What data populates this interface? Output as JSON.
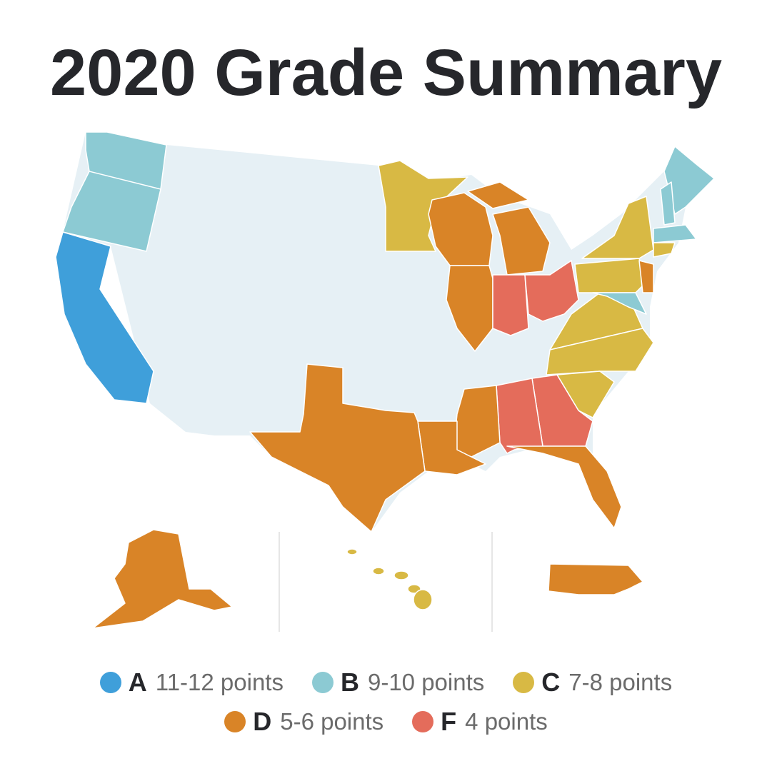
{
  "title": "2020 Grade Summary",
  "legend": [
    {
      "grade": "A",
      "label": "11-12 points",
      "color": "#3f9fda"
    },
    {
      "grade": "B",
      "label": "9-10 points",
      "color": "#8ccad3"
    },
    {
      "grade": "C",
      "label": "7-8 points",
      "color": "#d8b944"
    },
    {
      "grade": "D",
      "label": "5-6 points",
      "color": "#d98427"
    },
    {
      "grade": "F",
      "label": "4 points",
      "color": "#e46c5b"
    }
  ],
  "no_grade_color": "#e6f0f5"
}
